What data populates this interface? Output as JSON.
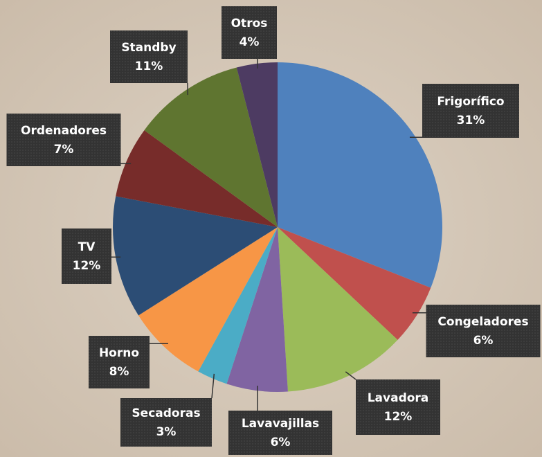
{
  "chart_data": {
    "type": "pie",
    "categories": [
      "Frigorífico",
      "Congeladores",
      "Lavadora",
      "Lavavajillas",
      "Secadoras",
      "Horno",
      "TV",
      "Ordenadores",
      "Standby",
      "Otros"
    ],
    "values": [
      31,
      6,
      12,
      6,
      3,
      8,
      12,
      7,
      11,
      4
    ],
    "value_labels": [
      "31%",
      "6%",
      "12%",
      "6%",
      "3%",
      "8%",
      "12%",
      "7%",
      "11%",
      "4%"
    ],
    "colors": [
      "#4f81bd",
      "#c0504d",
      "#9bbb59",
      "#8064a2",
      "#4bacc6",
      "#f79646",
      "#2c4d75",
      "#772c2a",
      "#5f7530",
      "#4d3b62"
    ]
  }
}
